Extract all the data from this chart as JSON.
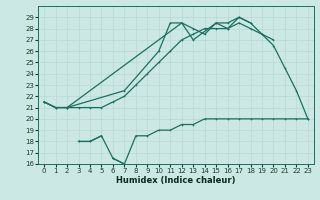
{
  "xlabel": "Humidex (Indice chaleur)",
  "bg_color": "#cce8e4",
  "line_color": "#1a7060",
  "grid_color": "#b8d8d4",
  "x_values": [
    0,
    1,
    2,
    3,
    4,
    5,
    6,
    7,
    8,
    9,
    10,
    11,
    12,
    13,
    14,
    15,
    16,
    17,
    18,
    19,
    20,
    21,
    22,
    23
  ],
  "line1_y": [
    21.5,
    21.0,
    21.0,
    21.0,
    21.0,
    21.0,
    21.5,
    22.0,
    23.0,
    24.0,
    25.0,
    26.0,
    27.0,
    27.5,
    28.0,
    28.0,
    28.0,
    28.5,
    28.0,
    27.5,
    26.5,
    24.5,
    22.5,
    20.0
  ],
  "line2_y": [
    21.5,
    21.0,
    21.0,
    null,
    null,
    null,
    null,
    22.5,
    null,
    null,
    26.0,
    28.5,
    28.5,
    27.0,
    null,
    28.5,
    28.0,
    29.0,
    28.5,
    null,
    null,
    null,
    null,
    null
  ],
  "line3_y": [
    21.5,
    21.0,
    21.0,
    null,
    null,
    null,
    null,
    null,
    null,
    null,
    null,
    null,
    28.5,
    28.0,
    27.5,
    28.5,
    28.5,
    29.0,
    28.5,
    27.5,
    27.0,
    null,
    null,
    null
  ],
  "line4_y": [
    null,
    null,
    null,
    18.0,
    18.0,
    18.5,
    null,
    null,
    null,
    null,
    null,
    null,
    null,
    null,
    null,
    null,
    null,
    null,
    null,
    null,
    null,
    null,
    null,
    null
  ],
  "line5_y": [
    null,
    null,
    null,
    18.0,
    18.0,
    18.5,
    16.5,
    16.0,
    18.5,
    18.5,
    19.0,
    19.0,
    19.5,
    19.5,
    20.0,
    20.0,
    20.0,
    20.0,
    20.0,
    20.0,
    20.0,
    20.0,
    20.0,
    20.0
  ],
  "line6_y": [
    null,
    null,
    null,
    null,
    null,
    null,
    16.5,
    16.0,
    null,
    null,
    null,
    null,
    null,
    null,
    null,
    null,
    null,
    null,
    null,
    null,
    null,
    null,
    null,
    null
  ],
  "ylim": [
    16,
    30
  ],
  "xlim": [
    -0.5,
    23.5
  ],
  "yticks": [
    16,
    17,
    18,
    19,
    20,
    21,
    22,
    23,
    24,
    25,
    26,
    27,
    28,
    29
  ],
  "xticks": [
    0,
    1,
    2,
    3,
    4,
    5,
    6,
    7,
    8,
    9,
    10,
    11,
    12,
    13,
    14,
    15,
    16,
    17,
    18,
    19,
    20,
    21,
    22,
    23
  ]
}
